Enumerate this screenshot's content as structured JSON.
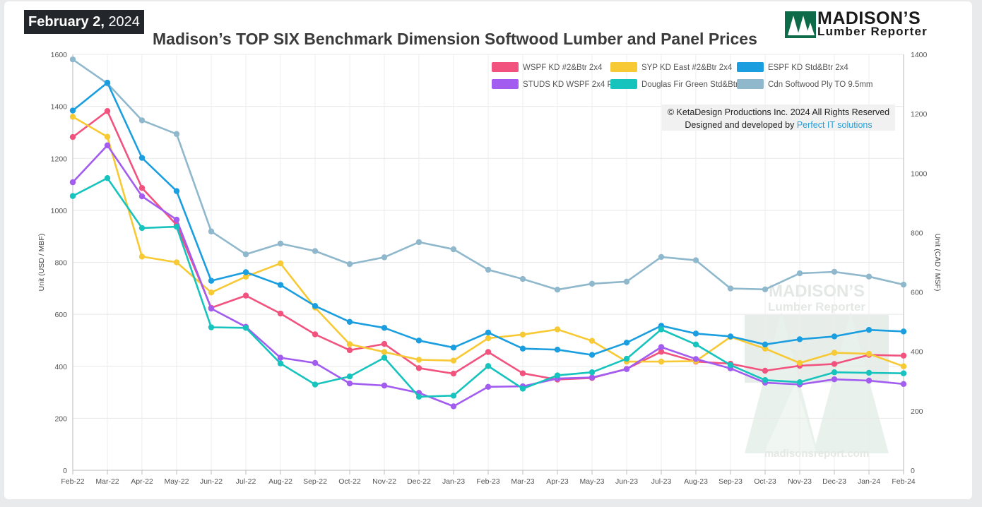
{
  "header": {
    "date_month_day": "February 2,",
    "date_year": "2024",
    "title": "Madison’s TOP SIX Benchmark Dimension Softwood Lumber and Panel Prices",
    "brand_name": "MADISON’S",
    "brand_sub": "Lumber Reporter"
  },
  "copyright": {
    "line1": "© KetaDesign Productions Inc. 2024 All Rights Reserved",
    "line2_prefix": "Designed and developed by ",
    "line2_link": "Perfect IT solutions"
  },
  "watermark": {
    "name": "MADISON’S",
    "sub": "Lumber Reporter",
    "url": "madisonsreport.com"
  },
  "colors": {
    "brand_green": "#0e6b4a",
    "grid": "#e6e6e6",
    "link": "#2a9fd6"
  },
  "chart_data": {
    "type": "line",
    "categories": [
      "Feb-22",
      "Mar-22",
      "Apr-22",
      "May-22",
      "Jun-22",
      "Jul-22",
      "Aug-22",
      "Sep-22",
      "Oct-22",
      "Nov-22",
      "Dec-22",
      "Jan-23",
      "Feb-23",
      "Mar-23",
      "Apr-23",
      "May-23",
      "Jun-23",
      "Jul-23",
      "Aug-23",
      "Sep-23",
      "Oct-23",
      "Nov-23",
      "Dec-23",
      "Jan-24",
      "Feb-24"
    ],
    "ylabel": "Unit (USD / MBF)",
    "ylim": [
      0,
      1600
    ],
    "yticks": [
      0,
      200,
      400,
      600,
      800,
      1000,
      1200,
      1400,
      1600
    ],
    "y2label": "Unit (CAD / MSF)",
    "y2lim": [
      0,
      1400
    ],
    "y2ticks": [
      0,
      200,
      400,
      600,
      800,
      1000,
      1200,
      1400
    ],
    "grid": true,
    "legend_position": "top-right",
    "series": [
      {
        "name": "WSPF KD #2&Btr 2x4",
        "color": "#f2527e",
        "axis": "left",
        "values": [
          1282,
          1382,
          1086,
          944,
          625,
          672,
          603,
          523,
          462,
          486,
          393,
          372,
          455,
          373,
          349,
          355,
          390,
          456,
          418,
          410,
          383,
          402,
          409,
          444,
          441
        ]
      },
      {
        "name": "SYP KD East #2&Btr 2x4",
        "color": "#f7c934",
        "axis": "left",
        "values": [
          1360,
          1283,
          822,
          800,
          684,
          745,
          796,
          626,
          485,
          455,
          425,
          422,
          508,
          522,
          542,
          498,
          418,
          418,
          420,
          513,
          468,
          413,
          452,
          448,
          400
        ]
      },
      {
        "name": "ESPF KD Std&Btr 2x4",
        "color": "#1a9ee0",
        "axis": "left",
        "values": [
          1384,
          1491,
          1202,
          1074,
          729,
          762,
          713,
          632,
          571,
          548,
          499,
          472,
          530,
          468,
          464,
          444,
          491,
          556,
          526,
          515,
          484,
          504,
          515,
          540,
          534
        ]
      },
      {
        "name": "STUDS KD WSPF 2x4 PET",
        "color": "#a25cf0",
        "axis": "left",
        "values": [
          1108,
          1250,
          1054,
          964,
          622,
          552,
          433,
          413,
          334,
          326,
          298,
          246,
          321,
          323,
          353,
          357,
          389,
          474,
          428,
          392,
          337,
          330,
          350,
          345,
          332
        ]
      },
      {
        "name": "Douglas Fir Green Std&Btr 2x4",
        "color": "#16c3bd",
        "axis": "left",
        "values": [
          1055,
          1124,
          932,
          937,
          550,
          548,
          411,
          330,
          361,
          433,
          283,
          287,
          401,
          314,
          365,
          377,
          429,
          542,
          484,
          405,
          347,
          339,
          377,
          375,
          373
        ]
      },
      {
        "name": "Cdn Softwood Ply TO 9.5mm",
        "color": "#90b8cc",
        "axis": "right",
        "values": [
          1383,
          1302,
          1178,
          1132,
          804,
          727,
          763,
          738,
          694,
          717,
          768,
          744,
          675,
          644,
          608,
          628,
          635,
          718,
          707,
          612,
          609,
          663,
          668,
          652,
          625
        ]
      }
    ]
  }
}
